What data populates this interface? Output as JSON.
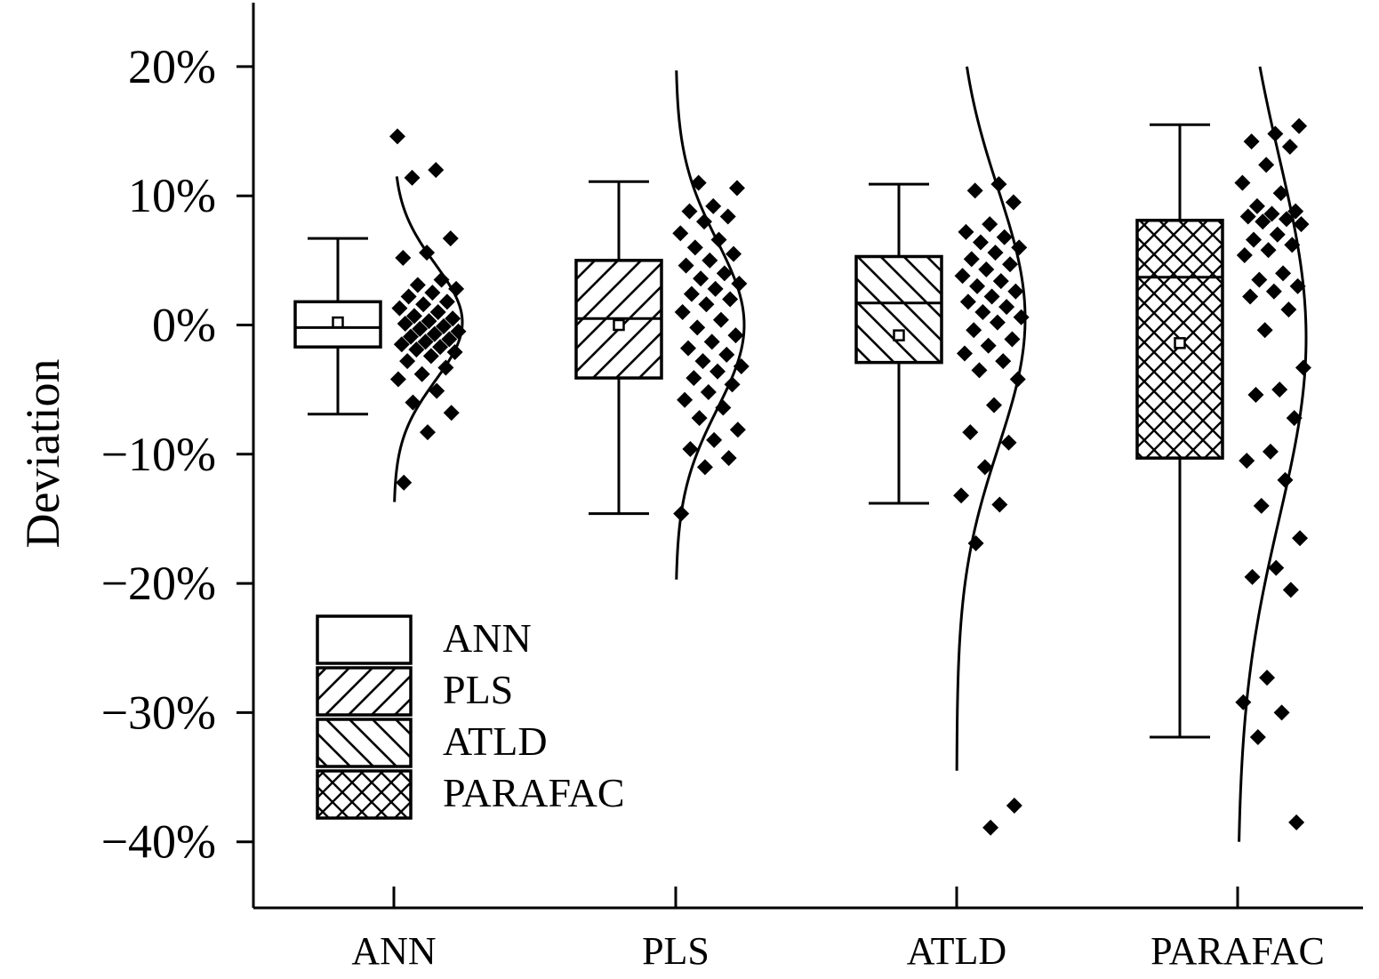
{
  "chart_data": {
    "type": "box",
    "title": "",
    "xlabel": "",
    "ylabel": "Deviation",
    "ylim": [
      -45,
      25
    ],
    "yticks": [
      -40,
      -30,
      -20,
      -10,
      0,
      10,
      20
    ],
    "ytick_labels": [
      "−40%",
      "−30%",
      "−20%",
      "−10%",
      "0%",
      "10%",
      "20%"
    ],
    "categories": [
      "ANN",
      "PLS",
      "ATLD",
      "PARAFAC"
    ],
    "legend": {
      "position": "bottom-left",
      "entries": [
        {
          "label": "ANN",
          "pattern": "none"
        },
        {
          "label": "PLS",
          "pattern": "forward-diagonal"
        },
        {
          "label": "ATLD",
          "pattern": "backward-diagonal"
        },
        {
          "label": "PARAFAC",
          "pattern": "cross-hatch"
        }
      ]
    },
    "series": [
      {
        "category": "ANN",
        "pattern": "none",
        "box": {
          "whisker_low": -6.9,
          "q1": -1.7,
          "median": -0.2,
          "q3": 1.8,
          "whisker_high": 6.7,
          "mean": 0.2
        },
        "distribution": {
          "mean": 0.2,
          "sd": 4.5,
          "min": -13.7,
          "max": 11.5
        },
        "points": [
          14.6,
          12.0,
          11.4,
          6.7,
          5.6,
          5.2,
          3.5,
          3.1,
          2.8,
          2.5,
          2.2,
          1.8,
          1.6,
          1.3,
          1.0,
          0.7,
          0.5,
          0.3,
          0.1,
          -0.1,
          -0.3,
          -0.5,
          -0.7,
          -0.9,
          -1.1,
          -1.3,
          -1.5,
          -1.7,
          -1.9,
          -2.1,
          -2.4,
          -2.8,
          -3.3,
          -3.8,
          -4.2,
          -5.1,
          -6.0,
          -6.8,
          -8.3,
          -12.2
        ]
      },
      {
        "category": "PLS",
        "pattern": "forward-diagonal",
        "box": {
          "whisker_low": -14.6,
          "q1": -4.1,
          "median": 0.5,
          "q3": 5.0,
          "whisker_high": 11.1,
          "mean": 0.0
        },
        "distribution": {
          "mean": 0.0,
          "sd": 6.5,
          "min": -19.7,
          "max": 19.7
        },
        "points": [
          11.0,
          10.6,
          9.2,
          8.8,
          8.4,
          8.0,
          7.1,
          6.6,
          6.0,
          5.5,
          5.0,
          4.6,
          4.0,
          3.6,
          3.2,
          2.8,
          2.4,
          2.0,
          1.6,
          1.0,
          0.4,
          -0.2,
          -0.8,
          -1.3,
          -1.8,
          -2.3,
          -2.8,
          -3.2,
          -3.6,
          -4.1,
          -4.6,
          -5.2,
          -5.8,
          -6.4,
          -7.2,
          -8.1,
          -8.9,
          -9.6,
          -10.3,
          -11.0,
          -14.6
        ]
      },
      {
        "category": "ATLD",
        "pattern": "backward-diagonal",
        "box": {
          "whisker_low": -13.8,
          "q1": -2.9,
          "median": 1.7,
          "q3": 5.3,
          "whisker_high": 10.9,
          "mean": -0.8
        },
        "distribution": {
          "mean": 0.5,
          "sd": 10.0,
          "min": -34.5,
          "max": 20.0
        },
        "points": [
          10.9,
          10.4,
          9.5,
          7.8,
          7.2,
          6.8,
          6.4,
          6.0,
          5.6,
          5.1,
          4.7,
          4.3,
          3.8,
          3.4,
          3.0,
          2.6,
          2.2,
          1.8,
          1.4,
          1.0,
          0.6,
          0.2,
          -0.4,
          -1.1,
          -1.6,
          -2.2,
          -2.8,
          -3.5,
          -4.2,
          -6.2,
          -8.3,
          -9.1,
          -11.0,
          -13.2,
          -13.9,
          -16.9,
          -37.2,
          -38.9
        ]
      },
      {
        "category": "PARAFAC",
        "pattern": "cross-hatch",
        "box": {
          "whisker_low": -31.9,
          "q1": -10.3,
          "median": 3.7,
          "q3": 8.1,
          "whisker_high": 15.5,
          "mean": -1.4
        },
        "distribution": {
          "mean": -1.0,
          "sd": 14.0,
          "min": -40.0,
          "max": 20.0
        },
        "points": [
          15.4,
          14.8,
          14.2,
          13.8,
          12.4,
          11.0,
          10.2,
          9.2,
          8.8,
          8.6,
          8.4,
          8.2,
          8.0,
          7.8,
          7.0,
          6.6,
          6.2,
          5.8,
          5.4,
          4.0,
          3.5,
          3.0,
          2.6,
          2.2,
          1.2,
          -0.4,
          -3.3,
          -5.0,
          -5.4,
          -7.2,
          -9.8,
          -10.5,
          -12.0,
          -14.0,
          -16.5,
          -18.8,
          -19.5,
          -20.5,
          -27.3,
          -29.2,
          -30.0,
          -31.9,
          -38.5
        ]
      }
    ]
  }
}
